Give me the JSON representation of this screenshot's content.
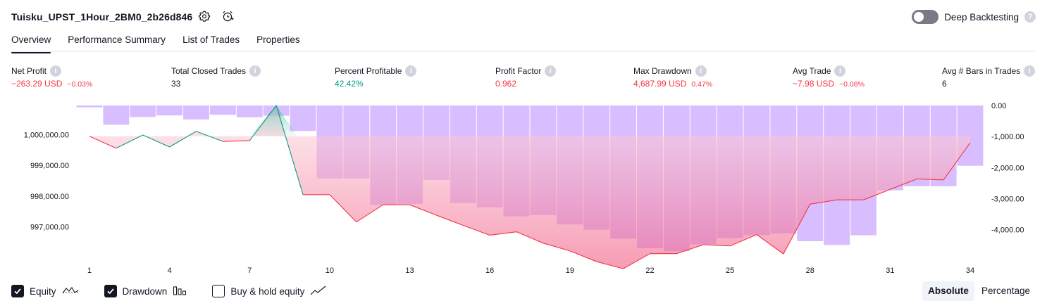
{
  "strategy_title": "Tuisku_UPST_1Hour_2BM0_2b26d846",
  "icons": {
    "settings": "settings-gear-icon",
    "alert": "add-alert-icon",
    "help": "help-icon"
  },
  "deep_backtesting": {
    "label": "Deep Backtesting",
    "enabled": false,
    "help": "?"
  },
  "tabs": [
    {
      "label": "Overview",
      "active": true
    },
    {
      "label": "Performance Summary",
      "active": false
    },
    {
      "label": "List of Trades",
      "active": false
    },
    {
      "label": "Properties",
      "active": false
    }
  ],
  "metrics": [
    {
      "label": "Net Profit",
      "value": "−263.29 USD",
      "sub": "−0.03%",
      "tone": "neg"
    },
    {
      "label": "Total Closed Trades",
      "value": "33",
      "sub": "",
      "tone": "neu"
    },
    {
      "label": "Percent Profitable",
      "value": "42.42%",
      "sub": "",
      "tone": "pos"
    },
    {
      "label": "Profit Factor",
      "value": "0.962",
      "sub": "",
      "tone": "neg"
    },
    {
      "label": "Max Drawdown",
      "value": "4,687.99 USD",
      "sub": "0.47%",
      "tone": "neg"
    },
    {
      "label": "Avg Trade",
      "value": "−7.98 USD",
      "sub": "−0.08%",
      "tone": "neg"
    },
    {
      "label": "Avg # Bars in Trades",
      "value": "6",
      "sub": "",
      "tone": "neu"
    }
  ],
  "chart_data": {
    "type": "line",
    "x_tick_labels": [
      "1",
      "4",
      "7",
      "10",
      "13",
      "16",
      "19",
      "22",
      "25",
      "28",
      "31",
      "34"
    ],
    "equity_axis": {
      "tick_labels": [
        "1,000,000.00",
        "999,000.00",
        "998,000.00",
        "997,000.00"
      ],
      "ylim": [
        996100,
        1000950
      ]
    },
    "drawdown_axis": {
      "tick_labels": [
        "0.00",
        "-1,000.00",
        "-2,000.00",
        "-3,000.00",
        "-4,000.00"
      ],
      "ylim": [
        -4800,
        0
      ]
    },
    "equity": {
      "x": [
        1,
        2,
        3,
        4,
        5,
        6,
        7,
        8,
        9,
        10,
        11,
        12,
        13,
        14,
        15,
        16,
        17,
        18,
        19,
        20,
        21,
        22,
        23,
        24,
        25,
        26,
        27,
        28,
        29,
        30,
        31,
        32,
        33,
        34
      ],
      "y": [
        999950,
        999560,
        999990,
        999600,
        1000110,
        999780,
        999810,
        1000950,
        998050,
        998050,
        997160,
        997720,
        997720,
        997380,
        997050,
        996730,
        996840,
        996470,
        996220,
        995870,
        995640,
        996130,
        996130,
        996420,
        996380,
        996750,
        996120,
        997740,
        997880,
        997880,
        998220,
        998560,
        998530,
        999740
      ],
      "color_up": "#089981",
      "color_down": "#f23645"
    },
    "drawdown": {
      "x": [
        1,
        2,
        3,
        4,
        5,
        6,
        7,
        8,
        9,
        10,
        11,
        12,
        13,
        14,
        15,
        16,
        17,
        18,
        19,
        20,
        21,
        22,
        23,
        24,
        25,
        26,
        27,
        28,
        29,
        30,
        31,
        32,
        33,
        34
      ],
      "y": [
        -60,
        -620,
        -370,
        -320,
        -450,
        -300,
        -380,
        -330,
        -820,
        -2350,
        -2350,
        -3200,
        -3170,
        -2400,
        -3140,
        -3280,
        -3570,
        -3530,
        -3830,
        -4000,
        -4290,
        -4590,
        -4690,
        -4470,
        -4270,
        -4170,
        -4120,
        -4370,
        -4490,
        -4180,
        -2730,
        -2600,
        -2600,
        -1940
      ],
      "color": "#c9a2ff"
    },
    "legend": [
      {
        "label": "Equity",
        "checked": true,
        "icon": "equity-line-icon"
      },
      {
        "label": "Drawdown",
        "checked": true,
        "icon": "drawdown-bars-icon"
      },
      {
        "label": "Buy & hold equity",
        "checked": false,
        "icon": "buy-hold-line-icon"
      }
    ],
    "grid": false
  },
  "display_modes": [
    {
      "label": "Absolute",
      "active": true
    },
    {
      "label": "Percentage",
      "active": false
    }
  ]
}
